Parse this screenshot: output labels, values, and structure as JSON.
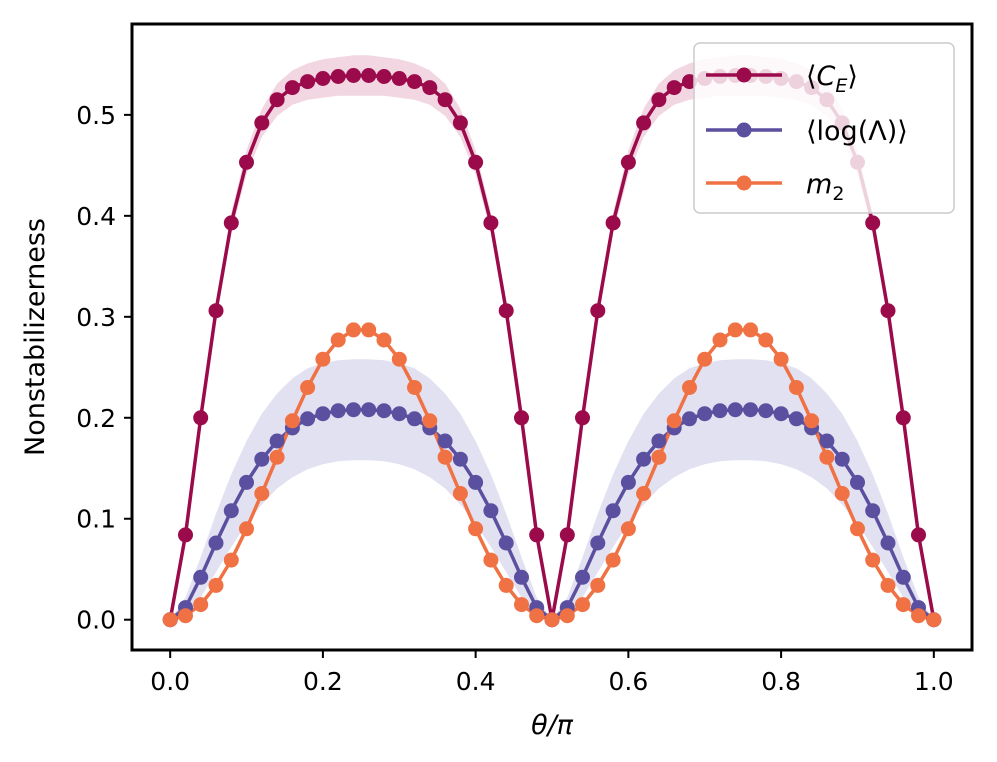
{
  "chart_data": {
    "type": "line",
    "title": "",
    "xlabel": "θ/π",
    "ylabel": "Nonstabilizerness",
    "xlim": [
      -0.05,
      1.05
    ],
    "ylim": [
      -0.03,
      0.59
    ],
    "xticks": [
      0.0,
      0.2,
      0.4,
      0.6,
      0.8,
      1.0
    ],
    "xtick_labels": [
      "0.0",
      "0.2",
      "0.4",
      "0.6",
      "0.8",
      "1.0"
    ],
    "yticks": [
      0.0,
      0.1,
      0.2,
      0.3,
      0.4,
      0.5
    ],
    "ytick_labels": [
      "0.0",
      "0.1",
      "0.2",
      "0.3",
      "0.4",
      "0.5"
    ],
    "legend_position": "top-right",
    "x": [
      0.0,
      0.02,
      0.04,
      0.06,
      0.08,
      0.1,
      0.12,
      0.14,
      0.16,
      0.18,
      0.2,
      0.22,
      0.24,
      0.26,
      0.28,
      0.3,
      0.32,
      0.34,
      0.36,
      0.38,
      0.4,
      0.42,
      0.44,
      0.46,
      0.48,
      0.5,
      0.52,
      0.54,
      0.56,
      0.58,
      0.6,
      0.62,
      0.64,
      0.66,
      0.68,
      0.7,
      0.72,
      0.74,
      0.76,
      0.78,
      0.8,
      0.82,
      0.84,
      0.86,
      0.88,
      0.9,
      0.92,
      0.94,
      0.96,
      0.98,
      1.0
    ],
    "series": [
      {
        "name": "⟨C_E⟩",
        "legend_main": "⟨C",
        "legend_sub": "E",
        "legend_tail": "⟩",
        "color": "#9b0a4b",
        "band_color": "#d98aa8",
        "band_opacity": 0.35,
        "values": [
          0.0,
          0.084,
          0.2,
          0.306,
          0.393,
          0.453,
          0.492,
          0.515,
          0.527,
          0.533,
          0.536,
          0.538,
          0.539,
          0.539,
          0.538,
          0.536,
          0.533,
          0.527,
          0.515,
          0.492,
          0.453,
          0.393,
          0.306,
          0.2,
          0.084,
          0.0,
          0.084,
          0.2,
          0.306,
          0.393,
          0.453,
          0.492,
          0.515,
          0.527,
          0.533,
          0.536,
          0.538,
          0.539,
          0.539,
          0.538,
          0.536,
          0.533,
          0.527,
          0.515,
          0.492,
          0.453,
          0.393,
          0.306,
          0.2,
          0.084,
          0.0
        ],
        "band_halfwidth": [
          0.0,
          0.003,
          0.006,
          0.008,
          0.01,
          0.012,
          0.014,
          0.016,
          0.017,
          0.018,
          0.019,
          0.019,
          0.02,
          0.02,
          0.019,
          0.019,
          0.018,
          0.017,
          0.016,
          0.014,
          0.012,
          0.01,
          0.008,
          0.006,
          0.003,
          0.0,
          0.003,
          0.006,
          0.008,
          0.01,
          0.012,
          0.014,
          0.016,
          0.017,
          0.018,
          0.019,
          0.019,
          0.02,
          0.02,
          0.019,
          0.019,
          0.018,
          0.017,
          0.016,
          0.014,
          0.012,
          0.01,
          0.008,
          0.006,
          0.003,
          0.0
        ]
      },
      {
        "name": "⟨log(Λ)⟩",
        "legend_main": "⟨log(Λ)⟩",
        "legend_sub": "",
        "legend_tail": "",
        "color": "#5b4fa0",
        "band_color": "#8d87c6",
        "band_opacity": 0.25,
        "values": [
          0.0,
          0.012,
          0.042,
          0.076,
          0.108,
          0.136,
          0.159,
          0.177,
          0.19,
          0.199,
          0.204,
          0.207,
          0.208,
          0.208,
          0.207,
          0.204,
          0.199,
          0.19,
          0.177,
          0.159,
          0.136,
          0.108,
          0.076,
          0.042,
          0.012,
          0.0,
          0.012,
          0.042,
          0.076,
          0.108,
          0.136,
          0.159,
          0.177,
          0.19,
          0.199,
          0.204,
          0.207,
          0.208,
          0.208,
          0.207,
          0.204,
          0.199,
          0.19,
          0.177,
          0.159,
          0.136,
          0.108,
          0.076,
          0.042,
          0.012,
          0.0
        ],
        "band_halfwidth": [
          0.0,
          0.01,
          0.02,
          0.029,
          0.036,
          0.041,
          0.045,
          0.047,
          0.049,
          0.05,
          0.05,
          0.05,
          0.05,
          0.05,
          0.05,
          0.05,
          0.05,
          0.049,
          0.047,
          0.045,
          0.041,
          0.036,
          0.029,
          0.02,
          0.01,
          0.0,
          0.01,
          0.02,
          0.029,
          0.036,
          0.041,
          0.045,
          0.047,
          0.049,
          0.05,
          0.05,
          0.05,
          0.05,
          0.05,
          0.05,
          0.05,
          0.05,
          0.049,
          0.047,
          0.045,
          0.041,
          0.036,
          0.029,
          0.02,
          0.01,
          0.0
        ]
      },
      {
        "name": "m_2",
        "legend_main": "m",
        "legend_sub": "2",
        "legend_tail": "",
        "color": "#f07143",
        "band_color": "#f07143",
        "band_opacity": 0.0,
        "values": [
          0.0,
          0.004,
          0.015,
          0.034,
          0.059,
          0.09,
          0.125,
          0.161,
          0.197,
          0.23,
          0.258,
          0.277,
          0.287,
          0.287,
          0.277,
          0.258,
          0.23,
          0.197,
          0.161,
          0.125,
          0.09,
          0.059,
          0.034,
          0.015,
          0.004,
          0.0,
          0.004,
          0.015,
          0.034,
          0.059,
          0.09,
          0.125,
          0.161,
          0.197,
          0.23,
          0.258,
          0.277,
          0.287,
          0.287,
          0.277,
          0.258,
          0.23,
          0.197,
          0.161,
          0.125,
          0.09,
          0.059,
          0.034,
          0.015,
          0.004,
          0.0
        ],
        "band_halfwidth": []
      }
    ]
  }
}
